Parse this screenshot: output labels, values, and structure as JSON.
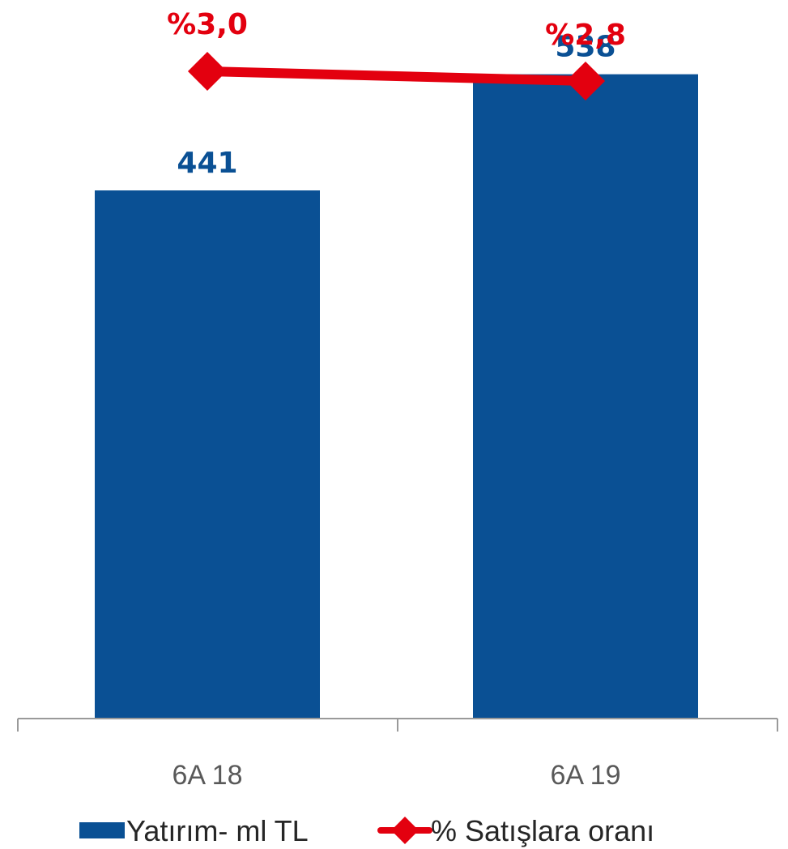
{
  "chart_data": {
    "type": "bar",
    "categories": [
      "6A 18",
      "6A 19"
    ],
    "series": [
      {
        "name": "Yatırım- ml TL",
        "kind": "bar",
        "values": [
          441,
          538
        ],
        "labels": [
          "441",
          "538"
        ],
        "color": "#0a5094"
      },
      {
        "name": "% Satışlara oranı",
        "kind": "line",
        "values": [
          3.0,
          2.8
        ],
        "labels": [
          "%3,0",
          "%2,8"
        ],
        "color": "#e3000f"
      }
    ],
    "legend_position": "bottom",
    "grid": false,
    "ylim": [
      0,
      600
    ]
  }
}
